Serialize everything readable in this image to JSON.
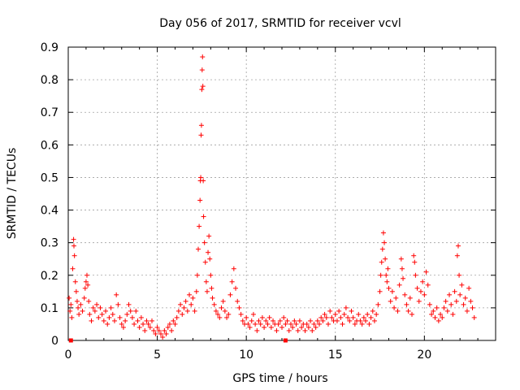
{
  "chart_data": {
    "type": "scatter",
    "title": "Day 056 of 2017, SRMTID for receiver vcvl",
    "xlabel": "GPS time / hours",
    "ylabel": "SRMTID / TECUs",
    "xlim": [
      0,
      24
    ],
    "ylim": [
      0,
      0.9
    ],
    "xticks": [
      0,
      5,
      10,
      15,
      20
    ],
    "yticks": [
      0,
      0.1,
      0.2,
      0.3,
      0.4,
      0.5,
      0.6,
      0.7,
      0.8,
      0.9
    ],
    "xtick_labels": [
      "0",
      "5",
      "10",
      "15",
      "20"
    ],
    "ytick_labels": [
      "0",
      "0.1",
      "0.2",
      "0.3",
      "0.4",
      "0.5",
      "0.6",
      "0.7",
      "0.8",
      "0.9"
    ],
    "grid": true,
    "marker": "+",
    "color": "#ff0000",
    "series": [
      {
        "name": "SRMTID",
        "points": [
          [
            0.05,
            0.13
          ],
          [
            0.1,
            0.09
          ],
          [
            0.15,
            0.11
          ],
          [
            0.2,
            0.07
          ],
          [
            0.25,
            0.22
          ],
          [
            0.3,
            0.31
          ],
          [
            0.32,
            0.29
          ],
          [
            0.35,
            0.26
          ],
          [
            0.4,
            0.18
          ],
          [
            0.45,
            0.15
          ],
          [
            0.5,
            0.12
          ],
          [
            0.55,
            0.1
          ],
          [
            0.6,
            0.08
          ],
          [
            0.7,
            0.11
          ],
          [
            0.8,
            0.09
          ],
          [
            0.9,
            0.13
          ],
          [
            0.95,
            0.16
          ],
          [
            1.0,
            0.18
          ],
          [
            1.05,
            0.2
          ],
          [
            1.1,
            0.17
          ],
          [
            1.15,
            0.12
          ],
          [
            1.2,
            0.08
          ],
          [
            1.3,
            0.06
          ],
          [
            1.4,
            0.1
          ],
          [
            1.5,
            0.09
          ],
          [
            1.6,
            0.11
          ],
          [
            1.7,
            0.07
          ],
          [
            1.8,
            0.1
          ],
          [
            1.9,
            0.08
          ],
          [
            2.0,
            0.06
          ],
          [
            2.1,
            0.09
          ],
          [
            2.2,
            0.05
          ],
          [
            2.3,
            0.07
          ],
          [
            2.4,
            0.1
          ],
          [
            2.5,
            0.08
          ],
          [
            2.6,
            0.06
          ],
          [
            2.7,
            0.14
          ],
          [
            2.8,
            0.11
          ],
          [
            2.9,
            0.07
          ],
          [
            3.0,
            0.05
          ],
          [
            3.1,
            0.04
          ],
          [
            3.2,
            0.06
          ],
          [
            3.3,
            0.08
          ],
          [
            3.4,
            0.11
          ],
          [
            3.5,
            0.09
          ],
          [
            3.6,
            0.07
          ],
          [
            3.7,
            0.05
          ],
          [
            3.8,
            0.09
          ],
          [
            3.9,
            0.06
          ],
          [
            4.0,
            0.04
          ],
          [
            4.1,
            0.07
          ],
          [
            4.2,
            0.05
          ],
          [
            4.3,
            0.03
          ],
          [
            4.4,
            0.06
          ],
          [
            4.5,
            0.05
          ],
          [
            4.6,
            0.04
          ],
          [
            4.7,
            0.06
          ],
          [
            4.8,
            0.03
          ],
          [
            4.9,
            0.02
          ],
          [
            5.0,
            0.04
          ],
          [
            5.1,
            0.03
          ],
          [
            5.2,
            0.02
          ],
          [
            5.3,
            0.01
          ],
          [
            5.4,
            0.03
          ],
          [
            5.5,
            0.02
          ],
          [
            5.6,
            0.04
          ],
          [
            5.7,
            0.05
          ],
          [
            5.8,
            0.03
          ],
          [
            5.9,
            0.06
          ],
          [
            6.0,
            0.05
          ],
          [
            6.1,
            0.07
          ],
          [
            6.2,
            0.09
          ],
          [
            6.3,
            0.11
          ],
          [
            6.4,
            0.08
          ],
          [
            6.5,
            0.1
          ],
          [
            6.6,
            0.12
          ],
          [
            6.7,
            0.09
          ],
          [
            6.8,
            0.14
          ],
          [
            6.9,
            0.11
          ],
          [
            7.0,
            0.13
          ],
          [
            7.1,
            0.09
          ],
          [
            7.2,
            0.15
          ],
          [
            7.25,
            0.2
          ],
          [
            7.3,
            0.28
          ],
          [
            7.35,
            0.35
          ],
          [
            7.4,
            0.43
          ],
          [
            7.42,
            0.49
          ],
          [
            7.44,
            0.5
          ],
          [
            7.46,
            0.63
          ],
          [
            7.48,
            0.66
          ],
          [
            7.5,
            0.77
          ],
          [
            7.52,
            0.83
          ],
          [
            7.54,
            0.87
          ],
          [
            7.56,
            0.78
          ],
          [
            7.58,
            0.49
          ],
          [
            7.6,
            0.38
          ],
          [
            7.65,
            0.3
          ],
          [
            7.7,
            0.24
          ],
          [
            7.75,
            0.18
          ],
          [
            7.8,
            0.15
          ],
          [
            7.85,
            0.27
          ],
          [
            7.9,
            0.32
          ],
          [
            7.95,
            0.25
          ],
          [
            8.0,
            0.2
          ],
          [
            8.05,
            0.16
          ],
          [
            8.1,
            0.13
          ],
          [
            8.2,
            0.11
          ],
          [
            8.3,
            0.09
          ],
          [
            8.4,
            0.08
          ],
          [
            8.5,
            0.07
          ],
          [
            8.6,
            0.1
          ],
          [
            8.7,
            0.12
          ],
          [
            8.8,
            0.09
          ],
          [
            8.9,
            0.07
          ],
          [
            9.0,
            0.08
          ],
          [
            9.1,
            0.14
          ],
          [
            9.2,
            0.18
          ],
          [
            9.3,
            0.22
          ],
          [
            9.4,
            0.16
          ],
          [
            9.5,
            0.12
          ],
          [
            9.6,
            0.1
          ],
          [
            9.7,
            0.08
          ],
          [
            9.8,
            0.06
          ],
          [
            9.9,
            0.05
          ],
          [
            10.0,
            0.07
          ],
          [
            10.1,
            0.05
          ],
          [
            10.2,
            0.04
          ],
          [
            10.3,
            0.06
          ],
          [
            10.4,
            0.08
          ],
          [
            10.5,
            0.05
          ],
          [
            10.6,
            0.03
          ],
          [
            10.7,
            0.06
          ],
          [
            10.8,
            0.05
          ],
          [
            10.9,
            0.07
          ],
          [
            11.0,
            0.04
          ],
          [
            11.1,
            0.06
          ],
          [
            11.2,
            0.05
          ],
          [
            11.3,
            0.07
          ],
          [
            11.4,
            0.04
          ],
          [
            11.5,
            0.06
          ],
          [
            11.6,
            0.05
          ],
          [
            11.7,
            0.03
          ],
          [
            11.8,
            0.05
          ],
          [
            11.9,
            0.06
          ],
          [
            12.0,
            0.04
          ],
          [
            12.1,
            0.07
          ],
          [
            12.2,
            0.05
          ],
          [
            12.3,
            0.06
          ],
          [
            12.4,
            0.03
          ],
          [
            12.5,
            0.05
          ],
          [
            12.6,
            0.04
          ],
          [
            12.7,
            0.06
          ],
          [
            12.8,
            0.05
          ],
          [
            12.9,
            0.03
          ],
          [
            13.0,
            0.06
          ],
          [
            13.1,
            0.04
          ],
          [
            13.2,
            0.05
          ],
          [
            13.3,
            0.03
          ],
          [
            13.4,
            0.05
          ],
          [
            13.5,
            0.04
          ],
          [
            13.6,
            0.06
          ],
          [
            13.7,
            0.03
          ],
          [
            13.8,
            0.05
          ],
          [
            13.9,
            0.04
          ],
          [
            14.0,
            0.06
          ],
          [
            14.1,
            0.05
          ],
          [
            14.2,
            0.07
          ],
          [
            14.3,
            0.06
          ],
          [
            14.4,
            0.08
          ],
          [
            14.5,
            0.07
          ],
          [
            14.6,
            0.05
          ],
          [
            14.7,
            0.09
          ],
          [
            14.8,
            0.07
          ],
          [
            14.9,
            0.06
          ],
          [
            15.0,
            0.08
          ],
          [
            15.1,
            0.06
          ],
          [
            15.2,
            0.09
          ],
          [
            15.3,
            0.07
          ],
          [
            15.4,
            0.05
          ],
          [
            15.5,
            0.08
          ],
          [
            15.6,
            0.1
          ],
          [
            15.7,
            0.07
          ],
          [
            15.8,
            0.06
          ],
          [
            15.9,
            0.09
          ],
          [
            16.0,
            0.07
          ],
          [
            16.1,
            0.05
          ],
          [
            16.2,
            0.06
          ],
          [
            16.3,
            0.08
          ],
          [
            16.4,
            0.06
          ],
          [
            16.5,
            0.05
          ],
          [
            16.6,
            0.07
          ],
          [
            16.7,
            0.06
          ],
          [
            16.8,
            0.08
          ],
          [
            16.9,
            0.05
          ],
          [
            17.0,
            0.07
          ],
          [
            17.1,
            0.09
          ],
          [
            17.2,
            0.06
          ],
          [
            17.3,
            0.08
          ],
          [
            17.4,
            0.11
          ],
          [
            17.5,
            0.15
          ],
          [
            17.55,
            0.2
          ],
          [
            17.6,
            0.24
          ],
          [
            17.65,
            0.28
          ],
          [
            17.7,
            0.33
          ],
          [
            17.75,
            0.3
          ],
          [
            17.8,
            0.25
          ],
          [
            17.85,
            0.2
          ],
          [
            17.9,
            0.18
          ],
          [
            17.95,
            0.22
          ],
          [
            18.0,
            0.16
          ],
          [
            18.1,
            0.12
          ],
          [
            18.2,
            0.15
          ],
          [
            18.3,
            0.1
          ],
          [
            18.4,
            0.13
          ],
          [
            18.5,
            0.09
          ],
          [
            18.6,
            0.17
          ],
          [
            18.7,
            0.25
          ],
          [
            18.75,
            0.22
          ],
          [
            18.8,
            0.19
          ],
          [
            18.9,
            0.14
          ],
          [
            19.0,
            0.11
          ],
          [
            19.1,
            0.09
          ],
          [
            19.2,
            0.13
          ],
          [
            19.3,
            0.08
          ],
          [
            19.4,
            0.26
          ],
          [
            19.45,
            0.24
          ],
          [
            19.5,
            0.2
          ],
          [
            19.6,
            0.16
          ],
          [
            19.7,
            0.12
          ],
          [
            19.8,
            0.15
          ],
          [
            19.9,
            0.18
          ],
          [
            20.0,
            0.14
          ],
          [
            20.1,
            0.21
          ],
          [
            20.2,
            0.17
          ],
          [
            20.3,
            0.11
          ],
          [
            20.4,
            0.08
          ],
          [
            20.5,
            0.09
          ],
          [
            20.6,
            0.07
          ],
          [
            20.7,
            0.1
          ],
          [
            20.8,
            0.06
          ],
          [
            20.9,
            0.08
          ],
          [
            21.0,
            0.07
          ],
          [
            21.1,
            0.1
          ],
          [
            21.2,
            0.12
          ],
          [
            21.3,
            0.09
          ],
          [
            21.4,
            0.14
          ],
          [
            21.5,
            0.11
          ],
          [
            21.6,
            0.08
          ],
          [
            21.7,
            0.15
          ],
          [
            21.8,
            0.12
          ],
          [
            21.85,
            0.26
          ],
          [
            21.9,
            0.29
          ],
          [
            21.95,
            0.2
          ],
          [
            22.0,
            0.14
          ],
          [
            22.1,
            0.17
          ],
          [
            22.2,
            0.11
          ],
          [
            22.3,
            0.13
          ],
          [
            22.4,
            0.09
          ],
          [
            22.5,
            0.16
          ],
          [
            22.6,
            0.12
          ],
          [
            22.7,
            0.1
          ],
          [
            22.8,
            0.07
          ]
        ]
      }
    ],
    "outliers_at_zero": [
      [
        0.15,
        0.0
      ],
      [
        12.2,
        0.0
      ]
    ]
  }
}
